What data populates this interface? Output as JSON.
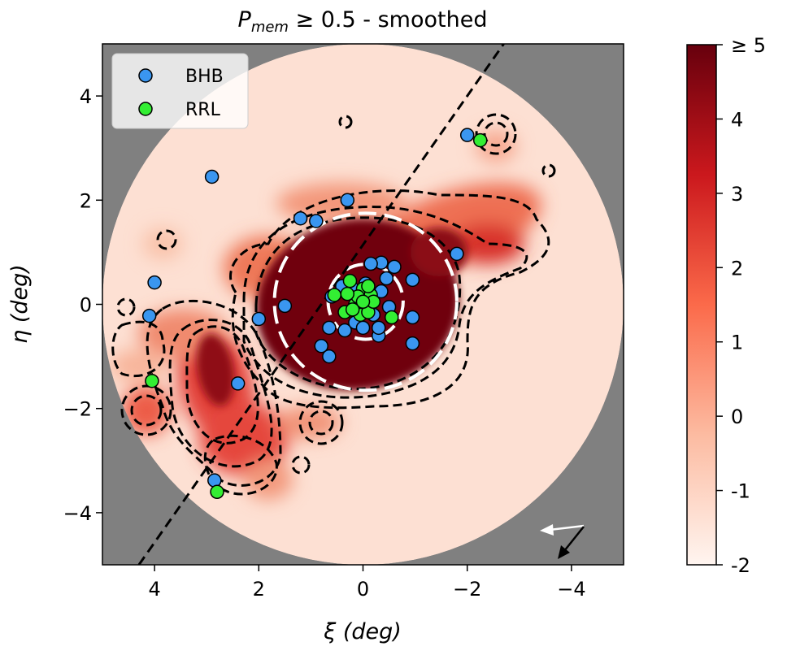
{
  "chart_data": {
    "type": "scatter",
    "title": "P_mem ≥ 0.5 - smoothed",
    "title_parts": {
      "main": "P",
      "sub": "mem",
      "rest": " ≥ 0.5 - smoothed"
    },
    "xlabel": "ξ (deg)",
    "xlabel_parts": {
      "sym": "ξ",
      "unit": " (deg)"
    },
    "ylabel": "η (deg)",
    "ylabel_parts": {
      "sym": "η",
      "unit": " (deg)"
    },
    "xlim": [
      5,
      -5
    ],
    "ylim": [
      -5,
      5
    ],
    "xticks": [
      {
        "value": 4,
        "label": "4"
      },
      {
        "value": 2,
        "label": "2"
      },
      {
        "value": 0,
        "label": "0"
      },
      {
        "value": -2,
        "label": "−2"
      },
      {
        "value": -4,
        "label": "−4"
      }
    ],
    "yticks": [
      {
        "value": 4,
        "label": "4"
      },
      {
        "value": 2,
        "label": "2"
      },
      {
        "value": 0,
        "label": "0"
      },
      {
        "value": -2,
        "label": "−2"
      },
      {
        "value": -4,
        "label": "−4"
      }
    ],
    "legend_position": "top-left",
    "background_color": "#808080",
    "footprint_radius_deg": 5,
    "axis_line": {
      "x": [
        4.3,
        -2.7
      ],
      "y": [
        -5.0,
        5.0
      ]
    },
    "ellipses": [
      {
        "cx": -0.05,
        "cy": 0.05,
        "rx": 1.75,
        "ry": 1.7
      },
      {
        "cx": -0.05,
        "cy": 0.05,
        "rx": 0.72,
        "ry": 0.72
      }
    ],
    "colorbar": {
      "range": [
        -2,
        5
      ],
      "ticks": [
        {
          "value": 5,
          "label": "≥ 5"
        },
        {
          "value": 4,
          "label": "4"
        },
        {
          "value": 3,
          "label": "3"
        },
        {
          "value": 2,
          "label": "2"
        },
        {
          "value": 1,
          "label": "1"
        },
        {
          "value": 0,
          "label": "0"
        },
        {
          "value": -1,
          "label": "-1"
        },
        {
          "value": -2,
          "label": "-2"
        }
      ],
      "colors": [
        "#fff5f0",
        "#fcbba1",
        "#fb6a4a",
        "#cb181d",
        "#67000d"
      ]
    },
    "series": [
      {
        "name": "BHB",
        "color": "#3a96f0",
        "points": [
          [
            -2.0,
            3.25
          ],
          [
            2.9,
            2.45
          ],
          [
            0.3,
            2.0
          ],
          [
            1.2,
            1.65
          ],
          [
            0.9,
            1.6
          ],
          [
            -1.8,
            0.97
          ],
          [
            4.0,
            0.42
          ],
          [
            4.1,
            -0.22
          ],
          [
            1.5,
            -0.03
          ],
          [
            2.0,
            -0.28
          ],
          [
            2.4,
            -1.52
          ],
          [
            0.8,
            -0.8
          ],
          [
            0.65,
            -1.0
          ],
          [
            2.85,
            -3.38
          ],
          [
            -0.95,
            0.47
          ],
          [
            -0.95,
            -0.25
          ],
          [
            -0.95,
            -0.75
          ],
          [
            -0.6,
            0.72
          ],
          [
            -0.35,
            0.8
          ],
          [
            -0.15,
            0.78
          ],
          [
            0.6,
            0.15
          ],
          [
            0.65,
            -0.45
          ],
          [
            0.35,
            -0.5
          ],
          [
            -0.3,
            -0.6
          ],
          [
            -0.3,
            -0.45
          ],
          [
            0.2,
            0.3
          ],
          [
            -0.05,
            0.4
          ],
          [
            0.15,
            -0.35
          ],
          [
            -0.2,
            -0.2
          ],
          [
            -0.45,
            0.5
          ],
          [
            0.4,
            0.35
          ],
          [
            -0.5,
            -0.05
          ],
          [
            0.1,
            0.05
          ],
          [
            -0.35,
            0.25
          ],
          [
            0.0,
            -0.45
          ]
        ]
      },
      {
        "name": "RRL",
        "color": "#33ee33",
        "points": [
          [
            -2.25,
            3.15
          ],
          [
            4.05,
            -1.47
          ],
          [
            2.8,
            -3.6
          ],
          [
            0.55,
            0.18
          ],
          [
            0.25,
            0.45
          ],
          [
            0.0,
            0.3
          ],
          [
            -0.15,
            0.18
          ],
          [
            0.15,
            0.0
          ],
          [
            0.35,
            -0.15
          ],
          [
            0.05,
            -0.2
          ],
          [
            -0.1,
            -0.15
          ],
          [
            -0.55,
            -0.25
          ],
          [
            0.1,
            0.15
          ],
          [
            -0.2,
            0.05
          ],
          [
            0.3,
            0.2
          ],
          [
            0.2,
            -0.1
          ],
          [
            0.0,
            0.05
          ],
          [
            -0.1,
            0.35
          ]
        ]
      }
    ]
  }
}
